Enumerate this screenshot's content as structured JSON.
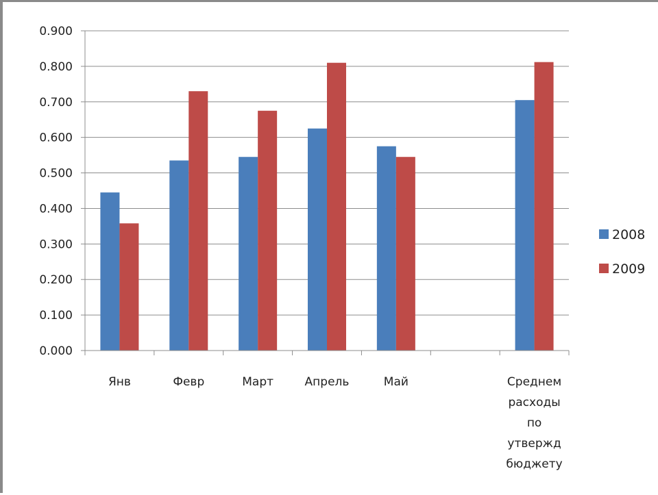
{
  "chart_data": {
    "type": "bar",
    "categories": [
      "Янв",
      "Февр",
      "Март",
      "Апрель",
      "Май",
      "",
      "Среднем расходы по утвержд бюджету"
    ],
    "category_lines": [
      [
        "Янв"
      ],
      [
        "Февр"
      ],
      [
        "Март"
      ],
      [
        "Апрель"
      ],
      [
        "Май"
      ],
      [],
      [
        "Среднем",
        "расходы",
        "по",
        "утвержд",
        "бюджету"
      ]
    ],
    "series": [
      {
        "name": "2008",
        "color": "#4a7ebb",
        "values": [
          0.445,
          0.535,
          0.545,
          0.625,
          0.575,
          null,
          0.705
        ]
      },
      {
        "name": "2009",
        "color": "#be4b48",
        "values": [
          0.358,
          0.73,
          0.675,
          0.81,
          0.545,
          null,
          0.812
        ]
      }
    ],
    "y_ticks": [
      "0.000",
      "0.100",
      "0.200",
      "0.300",
      "0.400",
      "0.500",
      "0.600",
      "0.700",
      "0.800",
      "0.900"
    ],
    "ylim": [
      0,
      0.9
    ],
    "title": "",
    "xlabel": "",
    "ylabel": "",
    "grid": true,
    "legend_position": "right"
  }
}
